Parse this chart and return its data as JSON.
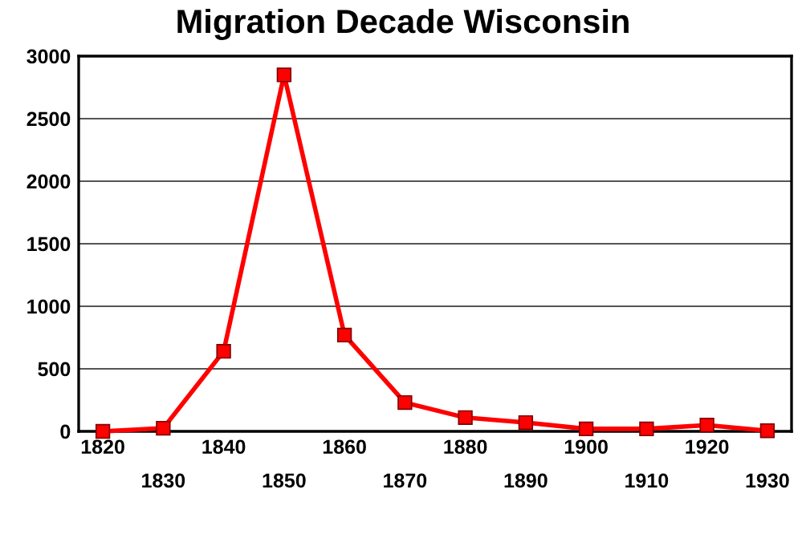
{
  "chart_data": {
    "type": "line",
    "title": "Migration Decade Wisconsin",
    "categories": [
      "1820",
      "1830",
      "1840",
      "1850",
      "1860",
      "1870",
      "1880",
      "1890",
      "1900",
      "1910",
      "1920",
      "1930"
    ],
    "series": [
      {
        "color": "#ff0000",
        "values": [
          0,
          25,
          640,
          2850,
          770,
          230,
          110,
          70,
          20,
          20,
          50,
          5
        ]
      }
    ],
    "ylim": [
      0,
      3000
    ],
    "yticks": [
      0,
      500,
      1000,
      1500,
      2000,
      2500,
      3000
    ],
    "grid": "y",
    "marker": "square",
    "line_style": "solid"
  }
}
